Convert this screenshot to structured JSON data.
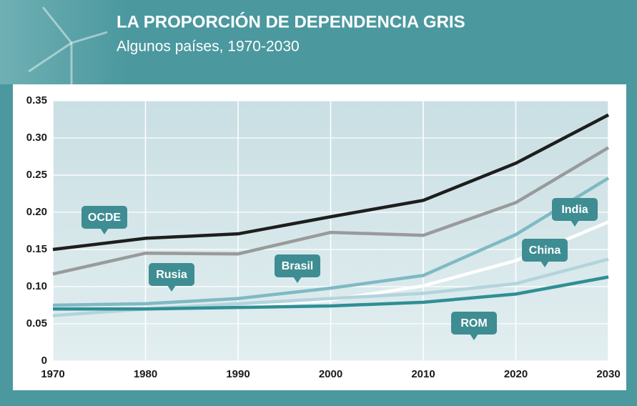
{
  "chart_data": {
    "type": "line",
    "title": "LA PROPORCIÓN DE DEPENDENCIA GRIS",
    "subtitle": "Algunos países, 1970-2030",
    "x": [
      1970,
      1980,
      1990,
      2000,
      2010,
      2020,
      2030
    ],
    "xlim": [
      1970,
      2030
    ],
    "xticks": [
      1970,
      1980,
      1990,
      2000,
      2010,
      2020,
      2030
    ],
    "ylim": [
      0,
      0.35
    ],
    "yticks": [
      0,
      0.05,
      {
        "value": 0.1,
        "label": "0.10"
      },
      0.15,
      {
        "value": 0.2,
        "label": "0.20"
      },
      0.25,
      {
        "value": 0.3,
        "label": "0.30"
      },
      0.35
    ],
    "grid": true,
    "series": [
      {
        "name": "OCDE",
        "color": "#1e1e1e",
        "values": [
          0.15,
          0.165,
          0.171,
          0.194,
          0.216,
          0.266,
          0.331
        ]
      },
      {
        "name": "Rusia",
        "color": "#999a9c",
        "values": [
          0.117,
          0.145,
          0.144,
          0.173,
          0.169,
          0.213,
          0.287
        ]
      },
      {
        "name": "Brasil",
        "color": "#7fb9c4",
        "values": [
          0.075,
          0.077,
          0.084,
          0.098,
          0.115,
          0.17,
          0.246
        ]
      },
      {
        "name": "India",
        "color": "#ffffff",
        "values": [
          0.07,
          0.07,
          0.072,
          0.082,
          0.101,
          0.135,
          0.187
        ]
      },
      {
        "name": "China",
        "color": "#b3d4dc",
        "values": [
          0.061,
          0.07,
          0.077,
          0.084,
          0.091,
          0.104,
          0.137
        ]
      },
      {
        "name": "ROM",
        "color": "#2f8f94",
        "values": [
          0.07,
          0.07,
          0.072,
          0.074,
          0.079,
          0.09,
          0.113
        ]
      }
    ]
  }
}
